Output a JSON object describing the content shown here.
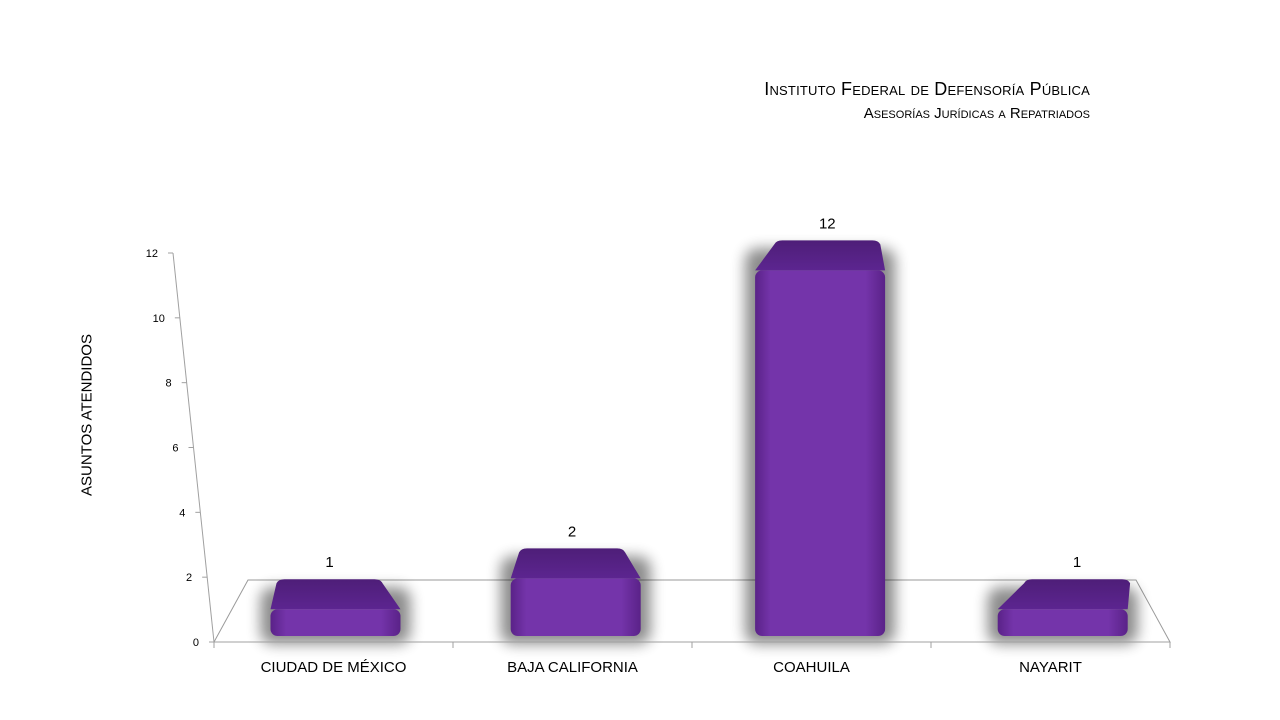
{
  "chart_data": {
    "type": "bar",
    "title": "Instituto Federal de Defensoría Pública",
    "subtitle": "Asesorías Jurídicas a Repatriados",
    "ylabel": "ASUNTOS ATENDIDOS",
    "xlabel": "",
    "categories": [
      "CIUDAD DE MÉXICO",
      "BAJA CALIFORNIA",
      "COAHUILA",
      "NAYARIT"
    ],
    "values": [
      1,
      2,
      12,
      1
    ],
    "ylim": [
      0,
      12
    ],
    "yticks": [
      "0",
      "2",
      "4",
      "6",
      "8",
      "10",
      "12"
    ],
    "grid": false,
    "legend": "none",
    "style": "3d",
    "bar_color": "#7030a0"
  }
}
